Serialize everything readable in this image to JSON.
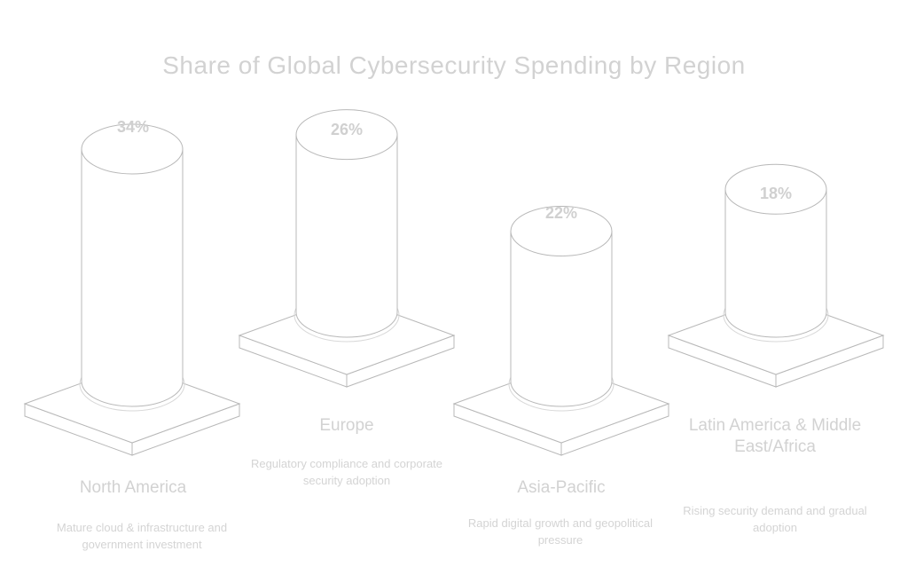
{
  "chart_data": {
    "type": "bar",
    "title": "Share of Global Cybersecurity Spending by Region",
    "categories": [
      "North America",
      "Europe",
      "Asia-Pacific",
      "Latin America & Middle East/Africa"
    ],
    "values": [
      34,
      26,
      22,
      18
    ],
    "value_labels": [
      "34%",
      "26%",
      "22%",
      "18%"
    ],
    "descriptions": [
      "Mature cloud & infrastructure and government investment",
      "Regulatory compliance and corporate security adoption",
      "Rapid digital growth and geopolitical pressure",
      "Rising security demand and gradual adoption"
    ],
    "ylim": [
      0,
      34
    ],
    "legend": "none",
    "grid": false,
    "colors": {
      "stroke": "#b8b8b8",
      "fill": "#ffffff",
      "text": "#d0d0d0"
    }
  }
}
